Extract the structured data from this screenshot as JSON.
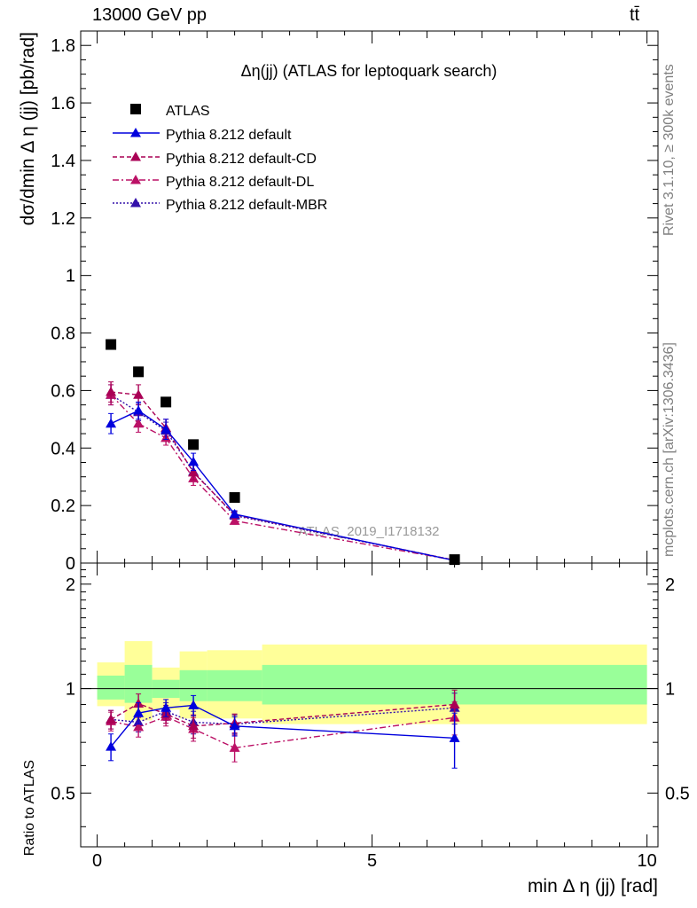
{
  "header": {
    "left": "13000 GeV pp",
    "right": "tt̄"
  },
  "side_labels": {
    "rivet": "Rivet 3.1.10, ≥ 300k events",
    "mcplots": "mcplots.cern.ch [arXiv:1306.3436]"
  },
  "watermark": "ATLAS_2019_I1718132",
  "colors": {
    "atlas": "#000000",
    "default": "#0000dd",
    "cd": "#aa0055",
    "dl": "#bb1166",
    "mbr": "#3311aa",
    "band_inner": "#99ff99",
    "band_outer": "#ffff99"
  },
  "chart_data": [
    {
      "type": "scatter",
      "title": "Δη(jj) (ATLAS for leptoquark search)",
      "ylabel": "dσ/dmin Δ η (jj) [pb/rad]",
      "xlabel": "",
      "xlim": [
        -0.3,
        10.2
      ],
      "ylim": [
        0,
        1.85
      ],
      "y_ticks": [
        0,
        0.2,
        0.4,
        0.6,
        0.8,
        1,
        1.2,
        1.4,
        1.6,
        1.8
      ],
      "y_tick_labels": [
        "0",
        "0.2",
        "0.4",
        "0.6",
        "0.8",
        "1",
        "1.2",
        "1.4",
        "1.6",
        "1.8"
      ],
      "legend_position": "top-left",
      "x": [
        0.25,
        0.75,
        1.25,
        1.75,
        2.5,
        6.5
      ],
      "series": [
        {
          "name": "ATLAS",
          "marker": "square",
          "values": [
            0.76,
            0.665,
            0.56,
            0.412,
            0.228,
            0.012
          ]
        },
        {
          "name": "Pythia 8.212 default",
          "marker": "triangle",
          "line": "solid",
          "values": [
            0.485,
            0.53,
            0.465,
            0.352,
            0.17,
            0.009
          ],
          "errors": [
            0.035,
            0.03,
            0.035,
            0.03,
            0.012,
            0.003
          ]
        },
        {
          "name": "Pythia 8.212 default-CD",
          "marker": "triangle",
          "line": "dashed",
          "values": [
            0.595,
            0.585,
            0.47,
            0.315,
            0.168,
            0.01
          ],
          "errors": [
            0.035,
            0.035,
            0.03,
            0.025,
            0.012,
            0.003
          ]
        },
        {
          "name": "Pythia 8.212 default-DL",
          "marker": "triangle",
          "line": "dashdot",
          "values": [
            0.585,
            0.485,
            0.435,
            0.295,
            0.147,
            0.01
          ],
          "errors": [
            0.035,
            0.03,
            0.025,
            0.025,
            0.012,
            0.003
          ]
        },
        {
          "name": "Pythia 8.212 default-MBR",
          "marker": "triangle",
          "line": "dotted",
          "values": [
            0.585,
            0.525,
            0.46,
            0.318,
            0.165,
            0.01
          ],
          "errors": [
            0.035,
            0.03,
            0.03,
            0.025,
            0.012,
            0.003
          ]
        }
      ]
    },
    {
      "type": "scatter",
      "title": "",
      "ylabel": "Ratio to ATLAS",
      "xlabel": "min Δ η (jj) [rad]",
      "xlim": [
        -0.3,
        10.2
      ],
      "ylim": [
        0.35,
        2.3
      ],
      "y_ticks": [
        0.5,
        1,
        2
      ],
      "y_tick_labels": [
        "0.5",
        "1",
        "2"
      ],
      "x_ticks": [
        0,
        5,
        10
      ],
      "x_tick_labels": [
        "0",
        "5",
        "10"
      ],
      "reference_line": 1,
      "bins": [
        [
          0,
          0.5
        ],
        [
          0.5,
          1.0
        ],
        [
          1.0,
          1.5
        ],
        [
          1.5,
          2.0
        ],
        [
          2.0,
          3.0
        ],
        [
          3.0,
          10.0
        ]
      ],
      "band_outer": [
        [
          0.89,
          1.19
        ],
        [
          0.81,
          1.37
        ],
        [
          0.87,
          1.15
        ],
        [
          0.82,
          1.28
        ],
        [
          0.82,
          1.29
        ],
        [
          0.79,
          1.34
        ]
      ],
      "band_inner": [
        [
          0.93,
          1.09
        ],
        [
          0.91,
          1.17
        ],
        [
          0.94,
          1.06
        ],
        [
          0.92,
          1.13
        ],
        [
          0.92,
          1.13
        ],
        [
          0.9,
          1.17
        ]
      ],
      "x": [
        0.25,
        0.75,
        1.25,
        1.75,
        2.5,
        6.5
      ],
      "series": [
        {
          "name": "Pythia 8.212 default",
          "values": [
            0.68,
            0.85,
            0.88,
            0.895,
            0.78,
            0.72
          ],
          "errors": [
            0.06,
            0.06,
            0.05,
            0.06,
            0.05,
            0.13
          ]
        },
        {
          "name": "Pythia 8.212 default-CD",
          "values": [
            0.815,
            0.905,
            0.845,
            0.78,
            0.795,
            0.9
          ],
          "errors": [
            0.05,
            0.06,
            0.05,
            0.06,
            0.05,
            0.09
          ]
        },
        {
          "name": "Pythia 8.212 default-DL",
          "values": [
            0.805,
            0.775,
            0.83,
            0.765,
            0.675,
            0.825
          ],
          "errors": [
            0.05,
            0.05,
            0.05,
            0.06,
            0.06,
            0.09
          ]
        },
        {
          "name": "Pythia 8.212 default-MBR",
          "values": [
            0.815,
            0.8,
            0.86,
            0.8,
            0.79,
            0.88
          ],
          "errors": [
            0.05,
            0.05,
            0.05,
            0.06,
            0.05,
            0.09
          ]
        }
      ]
    }
  ]
}
